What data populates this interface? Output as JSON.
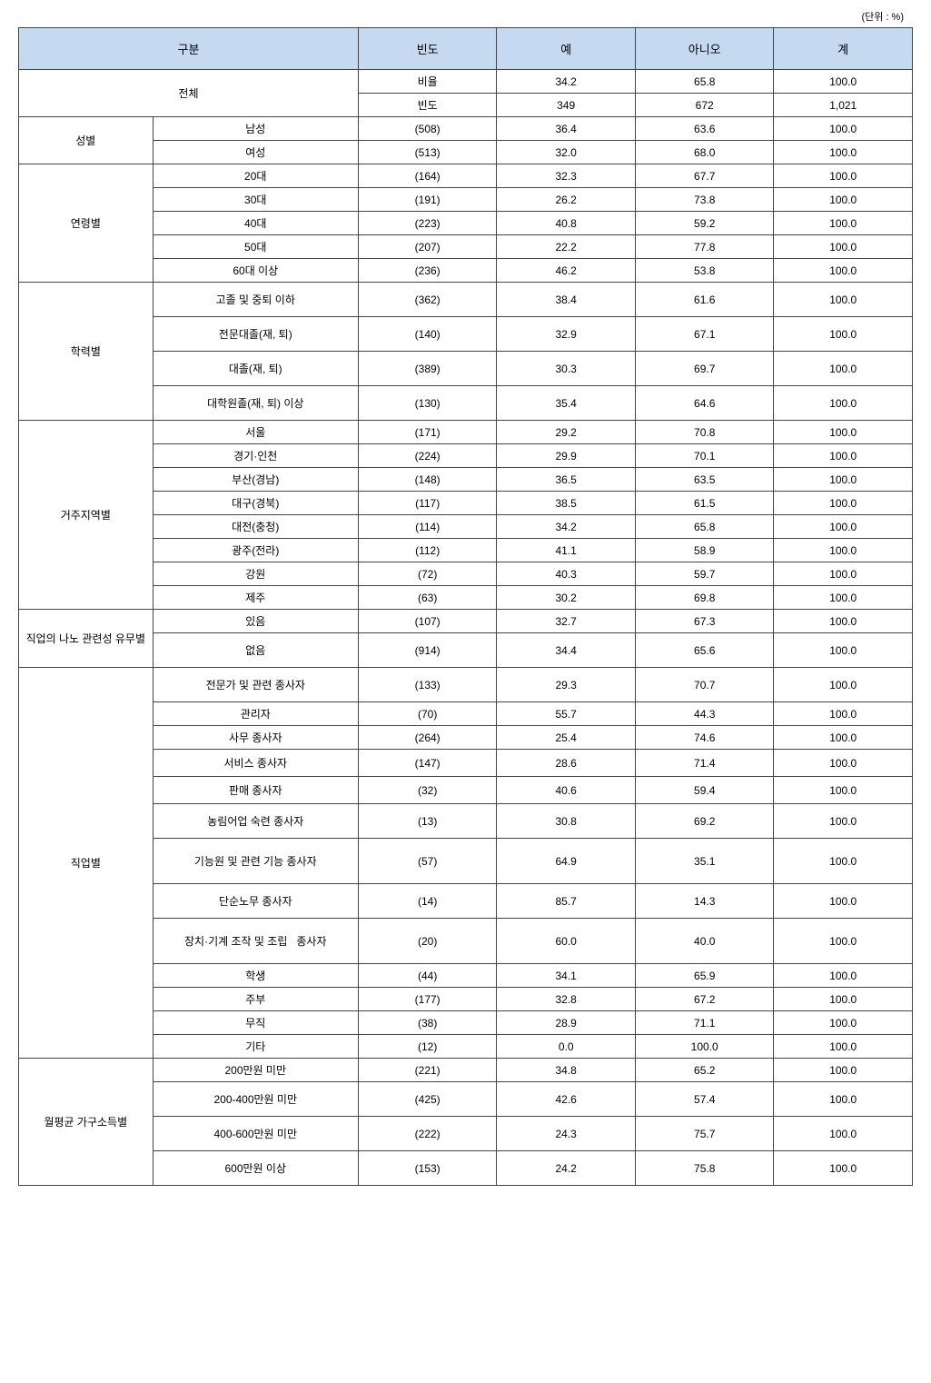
{
  "unit_label": "(단위 : %)",
  "headers": {
    "category": "구분",
    "freq": "빈도",
    "yes": "예",
    "no": "아니오",
    "total": "계"
  },
  "overall": {
    "label": "전체",
    "ratio_label": "비율",
    "freq_label": "빈도",
    "ratio": {
      "yes": "34.2",
      "no": "65.8",
      "total": "100.0"
    },
    "freq": {
      "yes": "349",
      "no": "672",
      "total": "1,021"
    }
  },
  "groups": [
    {
      "name": "성별",
      "rows": [
        {
          "label": "남성",
          "freq": "(508)",
          "yes": "36.4",
          "no": "63.6",
          "total": "100.0",
          "h": "short"
        },
        {
          "label": "여성",
          "freq": "(513)",
          "yes": "32.0",
          "no": "68.0",
          "total": "100.0",
          "h": "short"
        }
      ]
    },
    {
      "name": "연령별",
      "rows": [
        {
          "label": "20대",
          "freq": "(164)",
          "yes": "32.3",
          "no": "67.7",
          "total": "100.0",
          "h": "short"
        },
        {
          "label": "30대",
          "freq": "(191)",
          "yes": "26.2",
          "no": "73.8",
          "total": "100.0",
          "h": "short"
        },
        {
          "label": "40대",
          "freq": "(223)",
          "yes": "40.8",
          "no": "59.2",
          "total": "100.0",
          "h": "short"
        },
        {
          "label": "50대",
          "freq": "(207)",
          "yes": "22.2",
          "no": "77.8",
          "total": "100.0",
          "h": "short"
        },
        {
          "label": "60대 이상",
          "freq": "(236)",
          "yes": "46.2",
          "no": "53.8",
          "total": "100.0",
          "h": "short"
        }
      ]
    },
    {
      "name": "학력별",
      "rows": [
        {
          "label": "고졸 및 중퇴 이하",
          "freq": "(362)",
          "yes": "38.4",
          "no": "61.6",
          "total": "100.0",
          "h": "tall"
        },
        {
          "label": "전문대졸(재, 퇴)",
          "freq": "(140)",
          "yes": "32.9",
          "no": "67.1",
          "total": "100.0",
          "h": "tall"
        },
        {
          "label": "대졸(재, 퇴)",
          "freq": "(389)",
          "yes": "30.3",
          "no": "69.7",
          "total": "100.0",
          "h": "tall"
        },
        {
          "label": "대학원졸(재, 퇴) 이상",
          "freq": "(130)",
          "yes": "35.4",
          "no": "64.6",
          "total": "100.0",
          "h": "tall"
        }
      ]
    },
    {
      "name": "거주지역별",
      "rows": [
        {
          "label": "서울",
          "freq": "(171)",
          "yes": "29.2",
          "no": "70.8",
          "total": "100.0",
          "h": "short"
        },
        {
          "label": "경기·인천",
          "freq": "(224)",
          "yes": "29.9",
          "no": "70.1",
          "total": "100.0",
          "h": "short"
        },
        {
          "label": "부산(경남)",
          "freq": "(148)",
          "yes": "36.5",
          "no": "63.5",
          "total": "100.0",
          "h": "short"
        },
        {
          "label": "대구(경북)",
          "freq": "(117)",
          "yes": "38.5",
          "no": "61.5",
          "total": "100.0",
          "h": "short"
        },
        {
          "label": "대전(충청)",
          "freq": "(114)",
          "yes": "34.2",
          "no": "65.8",
          "total": "100.0",
          "h": "short"
        },
        {
          "label": "광주(전라)",
          "freq": "(112)",
          "yes": "41.1",
          "no": "58.9",
          "total": "100.0",
          "h": "short"
        },
        {
          "label": "강원",
          "freq": "(72)",
          "yes": "40.3",
          "no": "59.7",
          "total": "100.0",
          "h": "short"
        },
        {
          "label": "제주",
          "freq": "(63)",
          "yes": "30.2",
          "no": "69.8",
          "total": "100.0",
          "h": "short"
        }
      ]
    },
    {
      "name": "직업의 나노 관련성 유무별",
      "rows": [
        {
          "label": "있음",
          "freq": "(107)",
          "yes": "32.7",
          "no": "67.3",
          "total": "100.0",
          "h": "short"
        },
        {
          "label": "없음",
          "freq": "(914)",
          "yes": "34.4",
          "no": "65.6",
          "total": "100.0",
          "h": "tall"
        }
      ]
    },
    {
      "name": "직업별",
      "rows": [
        {
          "label": "전문가 및 관련 종사자",
          "freq": "(133)",
          "yes": "29.3",
          "no": "70.7",
          "total": "100.0",
          "h": "tall"
        },
        {
          "label": "관리자",
          "freq": "(70)",
          "yes": "55.7",
          "no": "44.3",
          "total": "100.0",
          "h": "short"
        },
        {
          "label": "사무 종사자",
          "freq": "(264)",
          "yes": "25.4",
          "no": "74.6",
          "total": "100.0",
          "h": "short"
        },
        {
          "label": "서비스 종사자",
          "freq": "(147)",
          "yes": "28.6",
          "no": "71.4",
          "total": "100.0",
          "h": "med"
        },
        {
          "label": "판매 종사자",
          "freq": "(32)",
          "yes": "40.6",
          "no": "59.4",
          "total": "100.0",
          "h": "med"
        },
        {
          "label": "농림어업 숙련 종사자",
          "freq": "(13)",
          "yes": "30.8",
          "no": "69.2",
          "total": "100.0",
          "h": "tall"
        },
        {
          "label": "기능원 및 관련 기능 종사자",
          "freq": "(57)",
          "yes": "64.9",
          "no": "35.1",
          "total": "100.0",
          "h": "vtall"
        },
        {
          "label": "단순노무 종사자",
          "freq": "(14)",
          "yes": "85.7",
          "no": "14.3",
          "total": "100.0",
          "h": "tall"
        },
        {
          "label": "장치·기계 조작 및 조립   종사자",
          "freq": "(20)",
          "yes": "60.0",
          "no": "40.0",
          "total": "100.0",
          "h": "vtall"
        },
        {
          "label": "학생",
          "freq": "(44)",
          "yes": "34.1",
          "no": "65.9",
          "total": "100.0",
          "h": "short"
        },
        {
          "label": "주부",
          "freq": "(177)",
          "yes": "32.8",
          "no": "67.2",
          "total": "100.0",
          "h": "short"
        },
        {
          "label": "무직",
          "freq": "(38)",
          "yes": "28.9",
          "no": "71.1",
          "total": "100.0",
          "h": "short"
        },
        {
          "label": "기타",
          "freq": "(12)",
          "yes": "0.0",
          "no": "100.0",
          "total": "100.0",
          "h": "short"
        }
      ]
    },
    {
      "name": "월평균 가구소득별",
      "rows": [
        {
          "label": "200만원 미만",
          "freq": "(221)",
          "yes": "34.8",
          "no": "65.2",
          "total": "100.0",
          "h": "short"
        },
        {
          "label": "200-400만원 미만",
          "freq": "(425)",
          "yes": "42.6",
          "no": "57.4",
          "total": "100.0",
          "h": "tall"
        },
        {
          "label": "400-600만원 미만",
          "freq": "(222)",
          "yes": "24.3",
          "no": "75.7",
          "total": "100.0",
          "h": "tall"
        },
        {
          "label": "600만원 이상",
          "freq": "(153)",
          "yes": "24.2",
          "no": "75.8",
          "total": "100.0",
          "h": "tall"
        }
      ]
    }
  ]
}
